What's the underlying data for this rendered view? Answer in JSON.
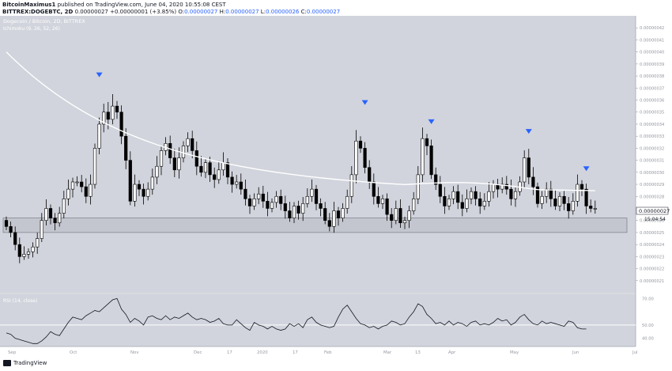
{
  "header": {
    "author": "BitcoinMaximus1",
    "published_text": "published on TradingView.com, June 04, 2020 10:55:08 CEST",
    "symbol": "BITTREX:DOGEBTC, 2D",
    "last": "0.00000027",
    "change": "+0.00000001 (+3.85%)",
    "o_label": "O:",
    "o": "0.00000027",
    "h_label": "H:",
    "h": "0.00000027",
    "l_label": "L:",
    "l": "0.00000026",
    "c_label": "C:",
    "c": "0.00000027"
  },
  "legend": {
    "title": "Dogecoin / Bitcoin, 2D, BITTREX",
    "indicator": "Ichimoku (9, 26, 52, 26)"
  },
  "price_badge": {
    "value": "0.00000027",
    "countdown": "15:04:54"
  },
  "rsi_label": "RSI (14, close)",
  "footer": {
    "brand": "TradingView"
  },
  "colors": {
    "panel_bg": "#d1d4dc",
    "candle_line": "#000000",
    "up_fill": "#ffffff",
    "down_fill": "#000000",
    "ma_line": "#ffffff",
    "support_box": "#c3c6ce",
    "marker": "#2962ff",
    "axis_text": "#9598a1"
  },
  "icons": {
    "marker": "triangle-down-icon"
  },
  "chart_data": [
    {
      "type": "candlestick",
      "name": "price",
      "ylim": [
        2e-07,
        4.3e-07
      ],
      "y_ticks": [
        "0.00000042",
        "0.00000041",
        "0.00000040",
        "0.00000039",
        "0.00000038",
        "0.00000037",
        "0.00000036",
        "0.00000035",
        "0.00000034",
        "0.00000033",
        "0.00000032",
        "0.00000031",
        "0.00000030",
        "0.00000029",
        "0.00000028",
        "0.00000026",
        "0.00000025",
        "0.00000024",
        "0.00000023",
        "0.00000022",
        "0.00000021"
      ],
      "x_ticks": [
        "Sep",
        "Oct",
        "Nov",
        "Dec",
        "17",
        "2020",
        "17",
        "Feb",
        "Mar",
        "13",
        "Apr",
        "May",
        "Jun",
        "Jul"
      ],
      "support_zone": [
        2.5e-07,
        2.62e-07
      ],
      "closes": [
        2.55e-07,
        2.5e-07,
        2.4e-07,
        2.3e-07,
        2.32e-07,
        2.34e-07,
        2.38e-07,
        2.45e-07,
        2.6e-07,
        2.7e-07,
        2.62e-07,
        2.58e-07,
        2.66e-07,
        2.78e-07,
        2.86e-07,
        2.92e-07,
        2.92e-07,
        2.88e-07,
        2.8e-07,
        2.9e-07,
        3.2e-07,
        3.4e-07,
        3.5e-07,
        3.44e-07,
        3.55e-07,
        3.5e-07,
        3.3e-07,
        3.1e-07,
        2.76e-07,
        2.9e-07,
        2.86e-07,
        2.8e-07,
        2.86e-07,
        2.96e-07,
        3.05e-07,
        3.18e-07,
        3.24e-07,
        3.12e-07,
        3.02e-07,
        3.12e-07,
        3.22e-07,
        3.28e-07,
        3.18e-07,
        3.05e-07,
        3e-07,
        3.08e-07,
        2.98e-07,
        2.94e-07,
        3.02e-07,
        3.08e-07,
        2.96e-07,
        2.9e-07,
        2.92e-07,
        2.86e-07,
        2.78e-07,
        2.72e-07,
        2.78e-07,
        2.82e-07,
        2.76e-07,
        2.7e-07,
        2.75e-07,
        2.8e-07,
        2.74e-07,
        2.68e-07,
        2.62e-07,
        2.72e-07,
        2.66e-07,
        2.74e-07,
        2.8e-07,
        2.86e-07,
        2.74e-07,
        2.7e-07,
        2.6e-07,
        2.55e-07,
        2.68e-07,
        2.62e-07,
        2.7e-07,
        2.8e-07,
        2.98e-07,
        3.26e-07,
        3.2e-07,
        3.04e-07,
        2.92e-07,
        2.8e-07,
        2.74e-07,
        2.78e-07,
        2.65e-07,
        2.6e-07,
        2.7e-07,
        2.58e-07,
        2.6e-07,
        2.68e-07,
        2.78e-07,
        2.98e-07,
        3.28e-07,
        3.22e-07,
        2.98e-07,
        2.9e-07,
        2.8e-07,
        2.72e-07,
        2.78e-07,
        2.84e-07,
        2.75e-07,
        2.7e-07,
        2.78e-07,
        2.84e-07,
        2.78e-07,
        2.72e-07,
        2.76e-07,
        2.84e-07,
        2.9e-07,
        2.86e-07,
        2.9e-07,
        2.86e-07,
        2.78e-07,
        2.84e-07,
        2.92e-07,
        3.12e-07,
        2.96e-07,
        2.88e-07,
        2.74e-07,
        2.8e-07,
        2.86e-07,
        2.78e-07,
        2.72e-07,
        2.8e-07,
        2.74e-07,
        2.68e-07,
        2.76e-07,
        2.9e-07,
        2.86e-07,
        2.72e-07,
        2.7e-07,
        2.7e-07
      ],
      "ma_start": 4e-07,
      "ma_end": 2.83e-07,
      "markers": [
        {
          "bar": 21,
          "price": 3.81e-07
        },
        {
          "bar": 81,
          "price": 3.58e-07
        },
        {
          "bar": 96,
          "price": 3.42e-07
        },
        {
          "bar": 118,
          "price": 3.34e-07
        },
        {
          "bar": 131,
          "price": 3.03e-07
        }
      ]
    },
    {
      "type": "line",
      "name": "RSI",
      "ylim": [
        35,
        72
      ],
      "y_ticks": [
        "70.00",
        "50.00",
        "40.00"
      ],
      "reference_level": 50,
      "values": [
        44,
        43,
        40,
        39,
        38,
        37,
        36,
        36,
        38,
        41,
        45,
        43,
        42,
        47,
        52,
        56,
        55,
        54,
        57,
        59,
        61,
        60,
        63,
        66,
        69,
        70,
        62,
        58,
        52,
        55,
        53,
        50,
        56,
        57,
        55,
        54,
        57,
        54,
        56,
        55,
        57,
        59,
        56,
        54,
        55,
        54,
        52,
        53,
        55,
        51,
        50,
        50,
        54,
        51,
        48,
        46,
        52,
        50,
        49,
        47,
        49,
        47,
        46,
        47,
        51,
        49,
        51,
        48,
        54,
        56,
        52,
        50,
        49,
        48,
        49,
        56,
        62,
        65,
        60,
        55,
        51,
        50,
        48,
        49,
        47,
        49,
        50,
        53,
        52,
        50,
        51,
        56,
        60,
        66,
        64,
        58,
        55,
        51,
        52,
        50,
        53,
        50,
        52,
        51,
        49,
        52,
        53,
        50,
        51,
        50,
        52,
        55,
        53,
        54,
        50,
        52,
        56,
        58,
        54,
        51,
        50,
        53,
        51,
        52,
        51,
        50,
        49,
        53,
        52,
        48,
        47,
        47
      ]
    }
  ]
}
